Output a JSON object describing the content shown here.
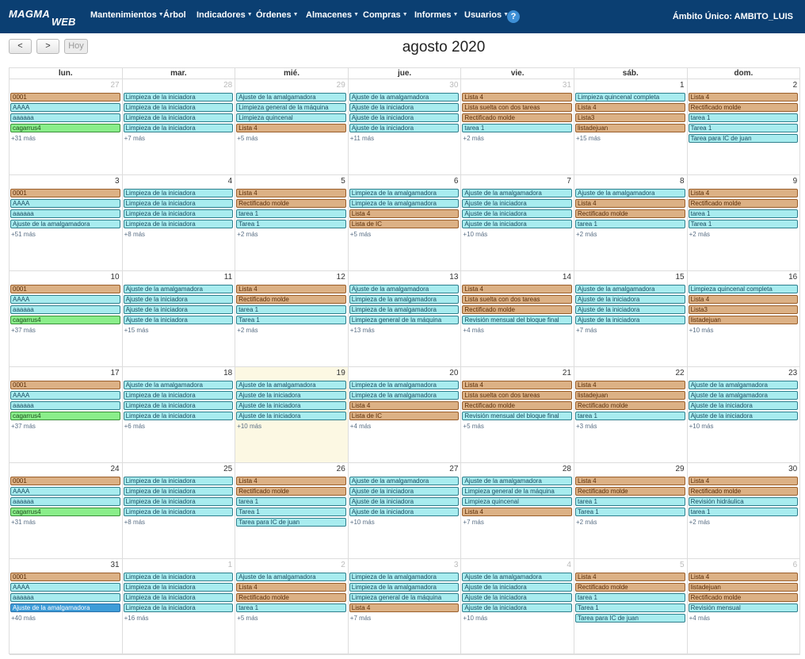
{
  "brand": {
    "line1": "MAGMA",
    "line2": "WEB"
  },
  "nav": [
    {
      "label": "Mantenimientos",
      "caret": true
    },
    {
      "label": "Árbol",
      "caret": false
    },
    {
      "label": "Indicadores",
      "caret": true
    },
    {
      "label": "Órdenes",
      "caret": true
    },
    {
      "label": "Almacenes",
      "caret": true
    },
    {
      "label": "Compras",
      "caret": true
    },
    {
      "label": "Informes",
      "caret": true
    },
    {
      "label": "Usuarios",
      "caret": true
    }
  ],
  "help_label": "?",
  "scope": "Ámbito Único: AMBITO_LUIS",
  "toolbar": {
    "prev": "<",
    "next": ">",
    "today": "Hoy"
  },
  "title": "agosto 2020",
  "weekdays": [
    "lun.",
    "mar.",
    "mié.",
    "jue.",
    "vie.",
    "sáb.",
    "dom."
  ],
  "colors": {
    "cyan": "#a8ecef",
    "orange": "#dcb185",
    "green": "#8aee8a",
    "blue": "#3d9cd8",
    "today": "#fcf8e3",
    "topbar": "#0b3f72"
  },
  "weeks": [
    [
      {
        "day": "27",
        "other": true,
        "events": [
          [
            "0001",
            "o"
          ],
          [
            "AAAA",
            "c"
          ],
          [
            "aaaaaa",
            "c"
          ],
          [
            "cagarrus4",
            "g"
          ]
        ],
        "more": "+31 más"
      },
      {
        "day": "28",
        "other": true,
        "events": [
          [
            "Limpieza de la iniciadora",
            "c"
          ],
          [
            "Limpieza de la iniciadora",
            "c"
          ],
          [
            "Limpieza de la iniciadora",
            "c"
          ],
          [
            "Limpieza de la iniciadora",
            "c"
          ]
        ],
        "more": "+7 más"
      },
      {
        "day": "29",
        "other": true,
        "events": [
          [
            "Ajuste de la amalgamadora",
            "c"
          ],
          [
            "Limpieza general de la máquina",
            "c"
          ],
          [
            "Limpieza quincenal",
            "c"
          ],
          [
            "Lista 4",
            "o"
          ]
        ],
        "more": "+5 más"
      },
      {
        "day": "30",
        "other": true,
        "events": [
          [
            "Ajuste de la amalgamadora",
            "c"
          ],
          [
            "Ajuste de la iniciadora",
            "c"
          ],
          [
            "Ajuste de la iniciadora",
            "c"
          ],
          [
            "Ajuste de la iniciadora",
            "c"
          ]
        ],
        "more": "+11 más"
      },
      {
        "day": "31",
        "other": true,
        "events": [
          [
            "Lista 4",
            "o"
          ],
          [
            "Lista suelta con dos tareas",
            "o"
          ],
          [
            "Rectificado molde",
            "o"
          ],
          [
            "tarea 1",
            "c"
          ]
        ],
        "more": "+2 más"
      },
      {
        "day": "1",
        "other": false,
        "events": [
          [
            "Limpieza quincenal completa",
            "c"
          ],
          [
            "Lista 4",
            "o"
          ],
          [
            "Lista3",
            "o"
          ],
          [
            "listadejuan",
            "o"
          ]
        ],
        "more": "+15 más"
      },
      {
        "day": "2",
        "other": false,
        "events": [
          [
            "Lista 4",
            "o"
          ],
          [
            "Rectificado molde",
            "o"
          ],
          [
            "tarea 1",
            "c"
          ],
          [
            "Tarea 1",
            "c"
          ],
          [
            "Tarea para IC de juan",
            "c"
          ]
        ],
        "more": ""
      }
    ],
    [
      {
        "day": "3",
        "other": false,
        "events": [
          [
            "0001",
            "o"
          ],
          [
            "AAAA",
            "c"
          ],
          [
            "aaaaaa",
            "c"
          ],
          [
            "Ajuste de la amalgamadora",
            "c"
          ]
        ],
        "more": "+51 más"
      },
      {
        "day": "4",
        "other": false,
        "events": [
          [
            "Limpieza de la iniciadora",
            "c"
          ],
          [
            "Limpieza de la iniciadora",
            "c"
          ],
          [
            "Limpieza de la iniciadora",
            "c"
          ],
          [
            "Limpieza de la iniciadora",
            "c"
          ]
        ],
        "more": "+8 más"
      },
      {
        "day": "5",
        "other": false,
        "events": [
          [
            "Lista 4",
            "o"
          ],
          [
            "Rectificado molde",
            "o"
          ],
          [
            "tarea 1",
            "c"
          ],
          [
            "Tarea 1",
            "c"
          ]
        ],
        "more": "+2 más"
      },
      {
        "day": "6",
        "other": false,
        "events": [
          [
            "Limpieza de la amalgamadora",
            "c"
          ],
          [
            "Limpieza de la amalgamadora",
            "c"
          ],
          [
            "Lista 4",
            "o"
          ],
          [
            "Lista de IC",
            "o"
          ]
        ],
        "more": "+5 más"
      },
      {
        "day": "7",
        "other": false,
        "events": [
          [
            "Ajuste de la amalgamadora",
            "c"
          ],
          [
            "Ajuste de la iniciadora",
            "c"
          ],
          [
            "Ajuste de la iniciadora",
            "c"
          ],
          [
            "Ajuste de la iniciadora",
            "c"
          ]
        ],
        "more": "+10 más"
      },
      {
        "day": "8",
        "other": false,
        "events": [
          [
            "Ajuste de la amalgamadora",
            "c"
          ],
          [
            "Lista 4",
            "o"
          ],
          [
            "Rectificado molde",
            "o"
          ],
          [
            "tarea 1",
            "c"
          ]
        ],
        "more": "+2 más"
      },
      {
        "day": "9",
        "other": false,
        "events": [
          [
            "Lista 4",
            "o"
          ],
          [
            "Rectificado molde",
            "o"
          ],
          [
            "tarea 1",
            "c"
          ],
          [
            "Tarea 1",
            "c"
          ]
        ],
        "more": "+2 más"
      }
    ],
    [
      {
        "day": "10",
        "other": false,
        "events": [
          [
            "0001",
            "o"
          ],
          [
            "AAAA",
            "c"
          ],
          [
            "aaaaaa",
            "c"
          ],
          [
            "cagarrus4",
            "g"
          ]
        ],
        "more": "+37 más"
      },
      {
        "day": "11",
        "other": false,
        "events": [
          [
            "Ajuste de la amalgamadora",
            "c"
          ],
          [
            "Ajuste de la iniciadora",
            "c"
          ],
          [
            "Ajuste de la iniciadora",
            "c"
          ],
          [
            "Ajuste de la iniciadora",
            "c"
          ]
        ],
        "more": "+15 más"
      },
      {
        "day": "12",
        "other": false,
        "events": [
          [
            "Lista 4",
            "o"
          ],
          [
            "Rectificado molde",
            "o"
          ],
          [
            "tarea 1",
            "c"
          ],
          [
            "Tarea 1",
            "c"
          ]
        ],
        "more": "+2 más"
      },
      {
        "day": "13",
        "other": false,
        "events": [
          [
            "Ajuste de la amalgamadora",
            "c"
          ],
          [
            "Limpieza de la amalgamadora",
            "c"
          ],
          [
            "Limpieza de la amalgamadora",
            "c"
          ],
          [
            "Limpieza general de la máquina",
            "c"
          ]
        ],
        "more": "+13 más"
      },
      {
        "day": "14",
        "other": false,
        "events": [
          [
            "Lista 4",
            "o"
          ],
          [
            "Lista suelta con dos tareas",
            "o"
          ],
          [
            "Rectificado molde",
            "o"
          ],
          [
            "Revisión mensual del bloque final",
            "c"
          ]
        ],
        "more": "+4 más"
      },
      {
        "day": "15",
        "other": false,
        "events": [
          [
            "Ajuste de la amalgamadora",
            "c"
          ],
          [
            "Ajuste de la iniciadora",
            "c"
          ],
          [
            "Ajuste de la iniciadora",
            "c"
          ],
          [
            "Ajuste de la iniciadora",
            "c"
          ]
        ],
        "more": "+7 más"
      },
      {
        "day": "16",
        "other": false,
        "events": [
          [
            "Limpieza quincenal completa",
            "c"
          ],
          [
            "Lista 4",
            "o"
          ],
          [
            "Lista3",
            "o"
          ],
          [
            "listadejuan",
            "o"
          ]
        ],
        "more": "+10 más"
      }
    ],
    [
      {
        "day": "17",
        "other": false,
        "events": [
          [
            "0001",
            "o"
          ],
          [
            "AAAA",
            "c"
          ],
          [
            "aaaaaa",
            "c"
          ],
          [
            "cagarrus4",
            "g"
          ]
        ],
        "more": "+37 más"
      },
      {
        "day": "18",
        "other": false,
        "events": [
          [
            "Ajuste de la amalgamadora",
            "c"
          ],
          [
            "Limpieza de la iniciadora",
            "c"
          ],
          [
            "Limpieza de la iniciadora",
            "c"
          ],
          [
            "Limpieza de la iniciadora",
            "c"
          ]
        ],
        "more": "+6 más"
      },
      {
        "day": "19",
        "other": false,
        "today": true,
        "events": [
          [
            "Ajuste de la amalgamadora",
            "c"
          ],
          [
            "Ajuste de la iniciadora",
            "c"
          ],
          [
            "Ajuste de la iniciadora",
            "c"
          ],
          [
            "Ajuste de la iniciadora",
            "c"
          ]
        ],
        "more": "+10 más"
      },
      {
        "day": "20",
        "other": false,
        "events": [
          [
            "Limpieza de la amalgamadora",
            "c"
          ],
          [
            "Limpieza de la amalgamadora",
            "c"
          ],
          [
            "Lista 4",
            "o"
          ],
          [
            "Lista de IC",
            "o"
          ]
        ],
        "more": "+4 más"
      },
      {
        "day": "21",
        "other": false,
        "events": [
          [
            "Lista 4",
            "o"
          ],
          [
            "Lista suelta con dos tareas",
            "o"
          ],
          [
            "Rectificado molde",
            "o"
          ],
          [
            "Revisión mensual del bloque final",
            "c"
          ]
        ],
        "more": "+5 más"
      },
      {
        "day": "22",
        "other": false,
        "events": [
          [
            "Lista 4",
            "o"
          ],
          [
            "listadejuan",
            "o"
          ],
          [
            "Rectificado molde",
            "o"
          ],
          [
            "tarea 1",
            "c"
          ]
        ],
        "more": "+3 más"
      },
      {
        "day": "23",
        "other": false,
        "events": [
          [
            "Ajuste de la amalgamadora",
            "c"
          ],
          [
            "Ajuste de la amalgamadora",
            "c"
          ],
          [
            "Ajuste de la iniciadora",
            "c"
          ],
          [
            "Ajuste de la iniciadora",
            "c"
          ]
        ],
        "more": "+10 más"
      }
    ],
    [
      {
        "day": "24",
        "other": false,
        "events": [
          [
            "0001",
            "o"
          ],
          [
            "AAAA",
            "c"
          ],
          [
            "aaaaaa",
            "c"
          ],
          [
            "cagarrus4",
            "g"
          ]
        ],
        "more": "+31 más"
      },
      {
        "day": "25",
        "other": false,
        "events": [
          [
            "Limpieza de la iniciadora",
            "c"
          ],
          [
            "Limpieza de la iniciadora",
            "c"
          ],
          [
            "Limpieza de la iniciadora",
            "c"
          ],
          [
            "Limpieza de la iniciadora",
            "c"
          ]
        ],
        "more": "+8 más"
      },
      {
        "day": "26",
        "other": false,
        "events": [
          [
            "Lista 4",
            "o"
          ],
          [
            "Rectificado molde",
            "o"
          ],
          [
            "tarea 1",
            "c"
          ],
          [
            "Tarea 1",
            "c"
          ],
          [
            "Tarea para IC de juan",
            "c"
          ]
        ],
        "more": ""
      },
      {
        "day": "27",
        "other": false,
        "events": [
          [
            "Ajuste de la amalgamadora",
            "c"
          ],
          [
            "Ajuste de la iniciadora",
            "c"
          ],
          [
            "Ajuste de la iniciadora",
            "c"
          ],
          [
            "Ajuste de la iniciadora",
            "c"
          ]
        ],
        "more": "+10 más"
      },
      {
        "day": "28",
        "other": false,
        "events": [
          [
            "Ajuste de la amalgamadora",
            "c"
          ],
          [
            "Limpieza general de la máquina",
            "c"
          ],
          [
            "Limpieza quincenal",
            "c"
          ],
          [
            "Lista 4",
            "o"
          ]
        ],
        "more": "+7 más"
      },
      {
        "day": "29",
        "other": false,
        "events": [
          [
            "Lista 4",
            "o"
          ],
          [
            "Rectificado molde",
            "o"
          ],
          [
            "tarea 1",
            "c"
          ],
          [
            "Tarea 1",
            "c"
          ]
        ],
        "more": "+2 más"
      },
      {
        "day": "30",
        "other": false,
        "events": [
          [
            "Lista 4",
            "o"
          ],
          [
            "Rectificado molde",
            "o"
          ],
          [
            "Revisión hidráulica",
            "c"
          ],
          [
            "tarea 1",
            "c"
          ]
        ],
        "more": "+2 más"
      }
    ],
    [
      {
        "day": "31",
        "other": false,
        "events": [
          [
            "0001",
            "o"
          ],
          [
            "AAAA",
            "c"
          ],
          [
            "aaaaaa",
            "c"
          ],
          [
            "Ajuste de la amalgamadora",
            "b"
          ]
        ],
        "more": "+40 más"
      },
      {
        "day": "1",
        "other": true,
        "events": [
          [
            "Limpieza de la iniciadora",
            "c"
          ],
          [
            "Limpieza de la iniciadora",
            "c"
          ],
          [
            "Limpieza de la iniciadora",
            "c"
          ],
          [
            "Limpieza de la iniciadora",
            "c"
          ]
        ],
        "more": "+16 más"
      },
      {
        "day": "2",
        "other": true,
        "events": [
          [
            "Ajuste de la amalgamadora",
            "c"
          ],
          [
            "Lista 4",
            "o"
          ],
          [
            "Rectificado molde",
            "o"
          ],
          [
            "tarea 1",
            "c"
          ]
        ],
        "more": "+5 más"
      },
      {
        "day": "3",
        "other": true,
        "events": [
          [
            "Limpieza de la amalgamadora",
            "c"
          ],
          [
            "Limpieza de la amalgamadora",
            "c"
          ],
          [
            "Limpieza general de la máquina",
            "c"
          ],
          [
            "Lista 4",
            "o"
          ]
        ],
        "more": "+7 más"
      },
      {
        "day": "4",
        "other": true,
        "events": [
          [
            "Ajuste de la amalgamadora",
            "c"
          ],
          [
            "Ajuste de la iniciadora",
            "c"
          ],
          [
            "Ajuste de la iniciadora",
            "c"
          ],
          [
            "Ajuste de la iniciadora",
            "c"
          ]
        ],
        "more": "+10 más"
      },
      {
        "day": "5",
        "other": true,
        "events": [
          [
            "Lista 4",
            "o"
          ],
          [
            "Rectificado molde",
            "o"
          ],
          [
            "tarea 1",
            "c"
          ],
          [
            "Tarea 1",
            "c"
          ],
          [
            "Tarea para IC de juan",
            "c"
          ]
        ],
        "more": ""
      },
      {
        "day": "6",
        "other": true,
        "events": [
          [
            "Lista 4",
            "o"
          ],
          [
            "listadejuan",
            "o"
          ],
          [
            "Rectificado molde",
            "o"
          ],
          [
            "Revisión mensual",
            "c"
          ]
        ],
        "more": "+4 más"
      }
    ]
  ]
}
